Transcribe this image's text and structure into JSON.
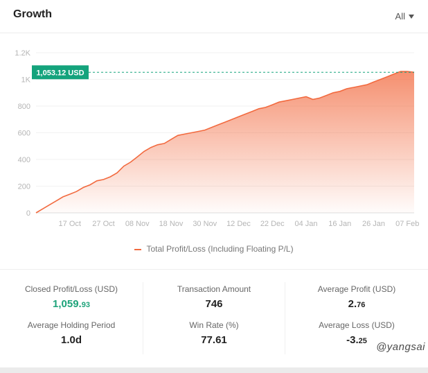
{
  "header": {
    "title": "Growth",
    "range": "All"
  },
  "chart_data": {
    "type": "area",
    "title": "Growth",
    "xlabel": "",
    "ylabel": "",
    "ylim": [
      0,
      1200
    ],
    "y_ticks": [
      "0",
      "200",
      "400",
      "600",
      "800",
      "1K",
      "1.2K"
    ],
    "y_tick_values": [
      0,
      200,
      400,
      600,
      800,
      1000,
      1200
    ],
    "x_ticks": [
      "17 Oct",
      "27 Oct",
      "08 Nov",
      "18 Nov",
      "30 Nov",
      "12 Dec",
      "22 Dec",
      "04 Jan",
      "16 Jan",
      "26 Jan",
      "07 Feb"
    ],
    "x_tick_index": [
      5,
      10,
      15,
      20,
      25,
      30,
      35,
      40,
      45,
      50,
      55
    ],
    "grid": true,
    "legend_position": "bottom",
    "marker": {
      "label": "1,053.12 USD",
      "value": 1053.12
    },
    "series": [
      {
        "name": "Total Profit/Loss (Including Floating P/L)",
        "color": "#f26a3f",
        "x": [
          0,
          1,
          2,
          3,
          4,
          5,
          6,
          7,
          8,
          9,
          10,
          11,
          12,
          13,
          14,
          15,
          16,
          17,
          18,
          19,
          20,
          21,
          22,
          23,
          24,
          25,
          26,
          27,
          28,
          29,
          30,
          31,
          32,
          33,
          34,
          35,
          36,
          37,
          38,
          39,
          40,
          41,
          42,
          43,
          44,
          45,
          46,
          47,
          48,
          49,
          50,
          51,
          52,
          53,
          54,
          55,
          56
        ],
        "values": [
          0,
          30,
          60,
          90,
          120,
          140,
          160,
          190,
          210,
          240,
          250,
          270,
          300,
          350,
          380,
          420,
          460,
          490,
          510,
          520,
          550,
          580,
          590,
          600,
          610,
          620,
          640,
          660,
          680,
          700,
          720,
          740,
          760,
          780,
          790,
          810,
          830,
          840,
          850,
          860,
          870,
          850,
          860,
          880,
          900,
          910,
          930,
          940,
          950,
          960,
          980,
          1000,
          1020,
          1040,
          1060,
          1059.93,
          1053.12
        ]
      }
    ]
  },
  "legend": {
    "label": "Total Profit/Loss (Including Floating P/L)"
  },
  "stats": {
    "closed_pl_label": "Closed Profit/Loss (USD)",
    "closed_pl_int": "1,059.",
    "closed_pl_dec": "93",
    "transaction_label": "Transaction Amount",
    "transaction_value": "746",
    "avg_profit_label": "Average Profit (USD)",
    "avg_profit_int": "2.",
    "avg_profit_dec": "76",
    "avg_holding_label": "Average Holding Period",
    "avg_holding_value": "1.0d",
    "win_rate_label": "Win Rate (%)",
    "win_rate_value": "77.61",
    "avg_loss_label": "Average Loss (USD)",
    "avg_loss_int": "-3.",
    "avg_loss_dec": "25"
  },
  "watermark": "@yangsai"
}
